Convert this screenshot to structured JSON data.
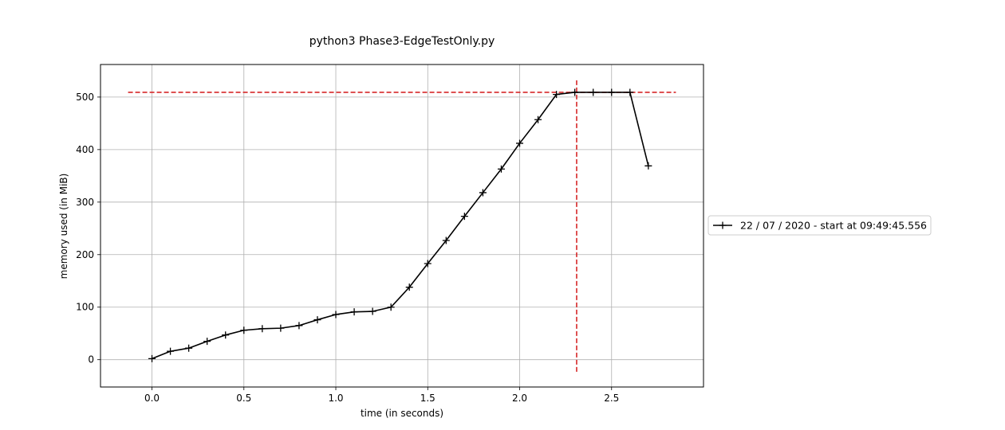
{
  "chart_data": {
    "type": "line",
    "title": "python3 Phase3-EdgeTestOnly.py",
    "xlabel": "time (in seconds)",
    "ylabel": "memory used (in MiB)",
    "xlim": [
      -0.28,
      3.0
    ],
    "ylim": [
      -52,
      562
    ],
    "xticks": [
      0.0,
      0.5,
      1.0,
      1.5,
      2.0,
      2.5
    ],
    "xtick_labels": [
      "0.0",
      "0.5",
      "1.0",
      "1.5",
      "2.0",
      "2.5"
    ],
    "yticks": [
      0,
      100,
      200,
      300,
      400,
      500
    ],
    "ytick_labels": [
      "0",
      "100",
      "200",
      "300",
      "400",
      "500"
    ],
    "grid": true,
    "legend_position": "right, outside plot",
    "series": [
      {
        "name": "22 / 07 / 2020 - start at 09:49:45.556",
        "color": "#000000",
        "marker": "plus",
        "x": [
          0.0,
          0.1,
          0.2,
          0.3,
          0.4,
          0.5,
          0.6,
          0.7,
          0.8,
          0.9,
          1.0,
          1.1,
          1.2,
          1.3,
          1.4,
          1.5,
          1.6,
          1.7,
          1.8,
          1.9,
          2.0,
          2.1,
          2.2,
          2.3,
          2.4,
          2.5,
          2.6,
          2.7
        ],
        "y": [
          2,
          16,
          22,
          35,
          47,
          56,
          59,
          60,
          65,
          76,
          86,
          91,
          92,
          100,
          138,
          183,
          227,
          273,
          318,
          363,
          412,
          457,
          505,
          509,
          509,
          509,
          509,
          369
        ]
      }
    ],
    "reference_lines": [
      {
        "orientation": "horizontal",
        "y": 509,
        "x_from": -0.13,
        "x_to": 2.85,
        "color": "#d62728",
        "style": "dashed"
      },
      {
        "orientation": "vertical",
        "x": 2.31,
        "y_from": -23,
        "y_to": 535,
        "color": "#d62728",
        "style": "dashed"
      }
    ]
  }
}
